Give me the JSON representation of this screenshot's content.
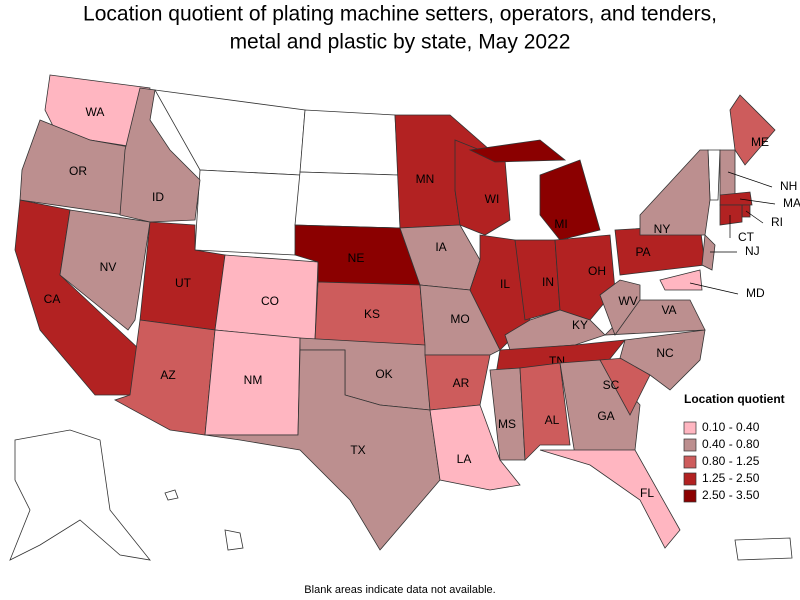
{
  "title": [
    "Location quotient of plating machine setters, operators, and tenders,",
    "metal and plastic by state, May 2022"
  ],
  "legend": {
    "title": "Location quotient",
    "items": [
      {
        "label": "0.10 - 0.40",
        "color": "#ffb6c1"
      },
      {
        "label": "0.40 - 0.80",
        "color": "#bc8f8f"
      },
      {
        "label": "0.80 - 1.25",
        "color": "#cd5c5c"
      },
      {
        "label": "1.25 - 2.50",
        "color": "#b22222"
      },
      {
        "label": "2.50 - 3.50",
        "color": "#8b0000"
      }
    ]
  },
  "states": [
    {
      "label": "WA",
      "class": 0
    },
    {
      "label": "OR",
      "class": 1
    },
    {
      "label": "CA",
      "class": 3
    },
    {
      "label": "NV",
      "class": 1
    },
    {
      "label": "ID",
      "class": 1
    },
    {
      "label": "UT",
      "class": 3
    },
    {
      "label": "CO",
      "class": 0
    },
    {
      "label": "AZ",
      "class": 2
    },
    {
      "label": "NM",
      "class": 0
    },
    {
      "label": "NE",
      "class": 4
    },
    {
      "label": "KS",
      "class": 2
    },
    {
      "label": "OK",
      "class": 1
    },
    {
      "label": "TX",
      "class": 1
    },
    {
      "label": "MN",
      "class": 3
    },
    {
      "label": "IA",
      "class": 1
    },
    {
      "label": "MO",
      "class": 1
    },
    {
      "label": "AR",
      "class": 2
    },
    {
      "label": "LA",
      "class": 0
    },
    {
      "label": "WI",
      "class": 3
    },
    {
      "label": "IL",
      "class": 3
    },
    {
      "label": "IN",
      "class": 3
    },
    {
      "label": "MI",
      "class": 4
    },
    {
      "label": "OH",
      "class": 3
    },
    {
      "label": "KY",
      "class": 1
    },
    {
      "label": "TN",
      "class": 3
    },
    {
      "label": "MS",
      "class": 1
    },
    {
      "label": "AL",
      "class": 2
    },
    {
      "label": "GA",
      "class": 1
    },
    {
      "label": "FL",
      "class": 0
    },
    {
      "label": "SC",
      "class": 2
    },
    {
      "label": "NC",
      "class": 1
    },
    {
      "label": "VA",
      "class": 1
    },
    {
      "label": "WV",
      "class": 1
    },
    {
      "label": "PA",
      "class": 3
    },
    {
      "label": "NY",
      "class": 1
    },
    {
      "label": "ME",
      "class": 2
    },
    {
      "label": "NH",
      "class": 1
    },
    {
      "label": "MA",
      "class": 3
    },
    {
      "label": "RI",
      "class": 3
    },
    {
      "label": "CT",
      "class": 3
    },
    {
      "label": "NJ",
      "class": 1
    },
    {
      "label": "MD",
      "class": 0
    }
  ],
  "footnote": "Blank areas indicate data not available."
}
